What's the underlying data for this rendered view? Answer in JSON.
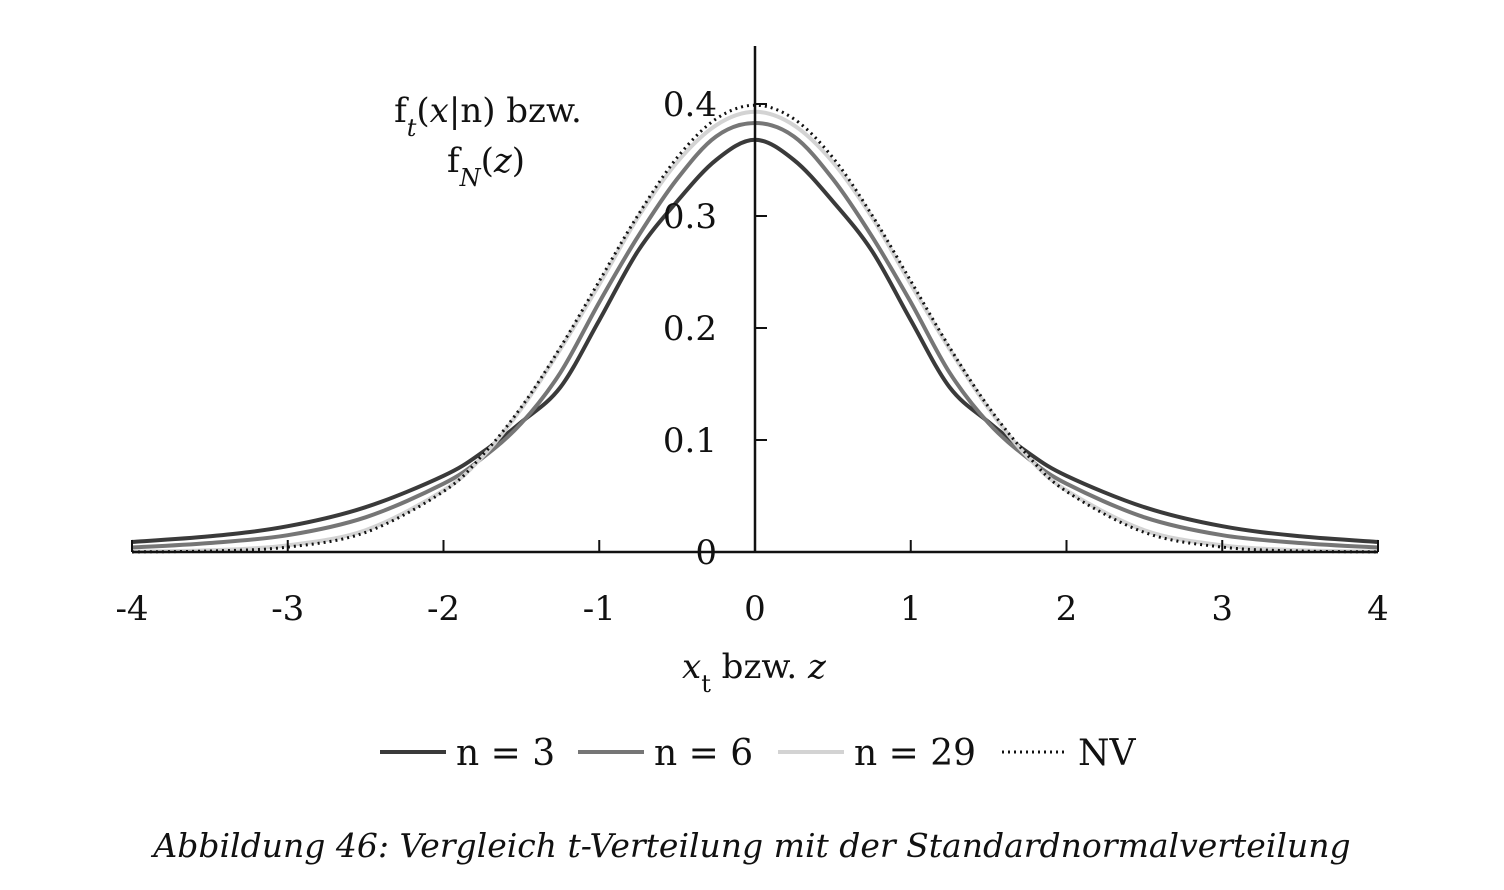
{
  "chart_data": {
    "type": "line",
    "xlabel": "x_t bzw. z",
    "ylabel": "f_t(x|n) bzw. f_N(z)",
    "xlim": [
      -4,
      4
    ],
    "ylim": [
      0,
      0.4
    ],
    "x_ticks": [
      "-4",
      "-3",
      "-2",
      "-1",
      "0",
      "1",
      "2",
      "3",
      "4"
    ],
    "y_ticks": [
      "0",
      "0.1",
      "0.2",
      "0.3",
      "0.4"
    ],
    "grid": false,
    "legend_position": "bottom",
    "x": [
      -4,
      -3.5,
      -3,
      -2.5,
      -2,
      -1.75,
      -1.5,
      -1.25,
      -1,
      -0.75,
      -0.5,
      -0.25,
      0,
      0.25,
      0.5,
      0.75,
      1,
      1.25,
      1.5,
      1.75,
      2,
      2.5,
      3,
      3.5,
      4
    ],
    "series": [
      {
        "name": "n = 3",
        "color": "#3a3a3a",
        "style": "solid",
        "values": [
          0.009,
          0.014,
          0.023,
          0.04,
          0.068,
          0.089,
          0.116,
          0.147,
          0.207,
          0.269,
          0.313,
          0.35,
          0.368,
          0.35,
          0.313,
          0.269,
          0.207,
          0.147,
          0.116,
          0.089,
          0.068,
          0.04,
          0.023,
          0.014,
          0.009
        ]
      },
      {
        "name": "n = 6",
        "color": "#767676",
        "style": "solid",
        "values": [
          0.004,
          0.008,
          0.015,
          0.031,
          0.061,
          0.084,
          0.115,
          0.16,
          0.223,
          0.282,
          0.333,
          0.371,
          0.383,
          0.371,
          0.333,
          0.282,
          0.223,
          0.16,
          0.115,
          0.084,
          0.061,
          0.031,
          0.015,
          0.008,
          0.004
        ]
      },
      {
        "name": "n = 29",
        "color": "#d3d3d3",
        "style": "solid",
        "values": [
          0.0003,
          0.0015,
          0.006,
          0.0195,
          0.055,
          0.085,
          0.128,
          0.181,
          0.239,
          0.299,
          0.348,
          0.381,
          0.393,
          0.381,
          0.348,
          0.299,
          0.239,
          0.181,
          0.128,
          0.085,
          0.055,
          0.0195,
          0.006,
          0.0015,
          0.0003
        ]
      },
      {
        "name": "NV",
        "color": "#111111",
        "style": "dotted",
        "values": [
          0.0001,
          0.0009,
          0.0044,
          0.0175,
          0.054,
          0.0863,
          0.1295,
          0.1826,
          0.242,
          0.3011,
          0.3521,
          0.3867,
          0.3989,
          0.3867,
          0.3521,
          0.3011,
          0.242,
          0.1826,
          0.1295,
          0.0863,
          0.054,
          0.0175,
          0.0044,
          0.0009,
          0.0001
        ]
      }
    ]
  },
  "caption": "Abbildung 46: Vergleich t-Verteilung mit der Standardnormalverteilung"
}
